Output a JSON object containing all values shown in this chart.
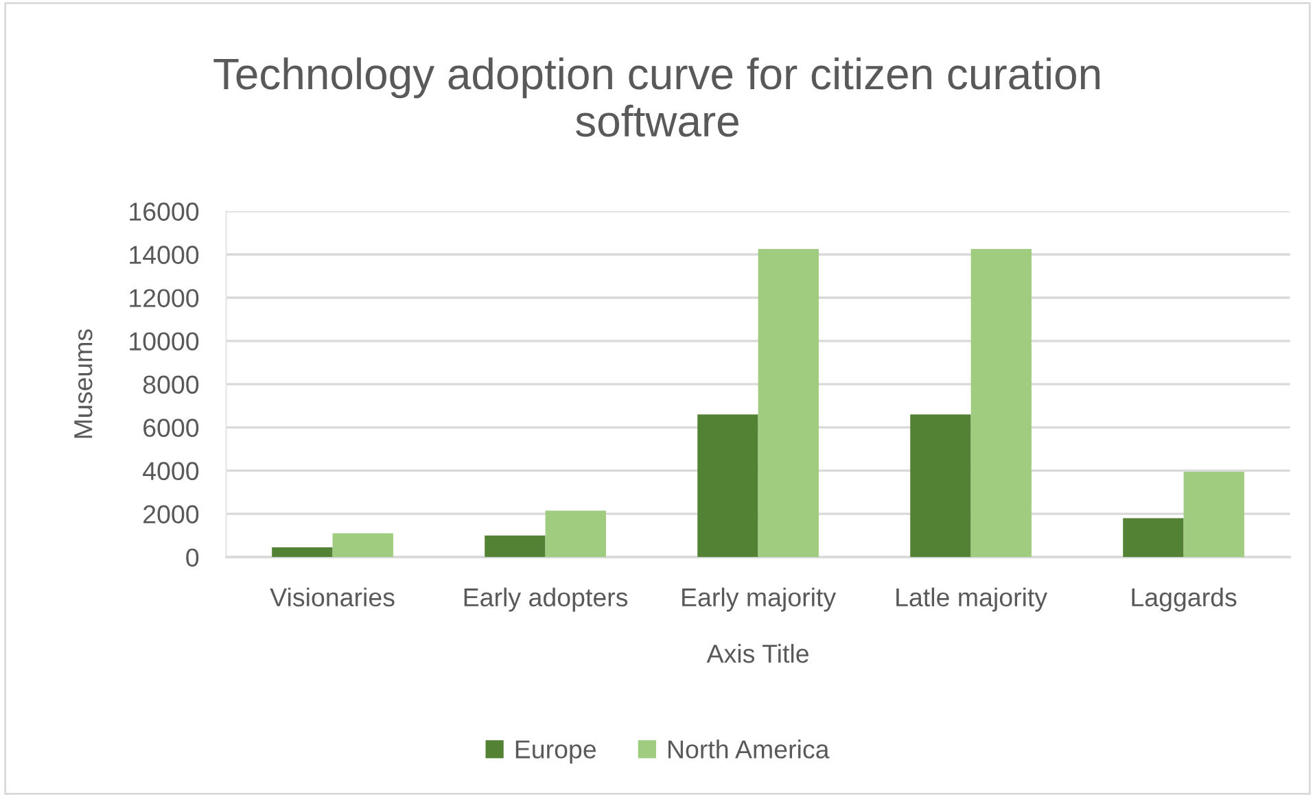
{
  "chart_data": {
    "type": "bar",
    "title": "Technology adoption curve for citizen curation software",
    "categories": [
      "Visionaries",
      "Early adopters",
      "Early majority",
      "Latle majority",
      "Laggards"
    ],
    "series": [
      {
        "name": "Europe",
        "color": "#548235",
        "values": [
          450,
          1000,
          6600,
          6600,
          1800
        ]
      },
      {
        "name": "North America",
        "color": "#a0cc80",
        "values": [
          1100,
          2150,
          14250,
          14250,
          3950
        ]
      }
    ],
    "xlabel": "Axis Title",
    "ylabel": "Museums",
    "ylim": [
      0,
      16000
    ],
    "yticks": [
      0,
      2000,
      4000,
      6000,
      8000,
      10000,
      12000,
      14000,
      16000
    ],
    "grid": "y",
    "legend": "bottom"
  }
}
